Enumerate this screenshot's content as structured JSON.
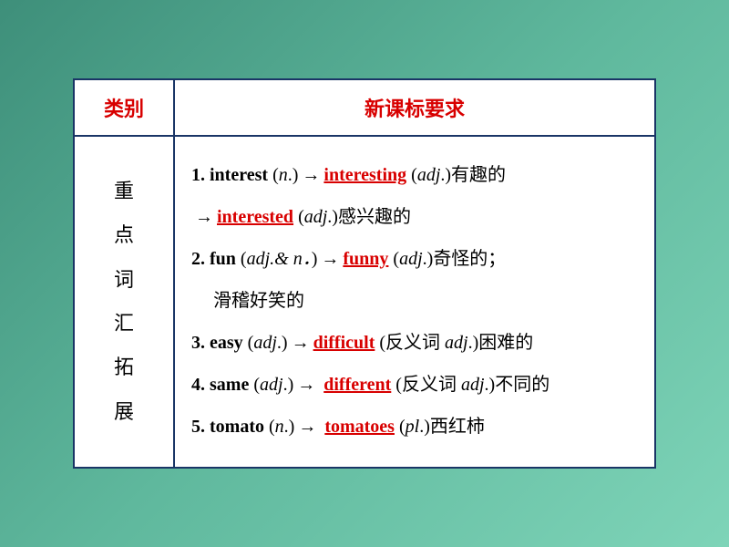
{
  "colors": {
    "border": "#1a3566",
    "heading_text": "#d80000",
    "derived_text": "#d80000",
    "body_text": "#000000",
    "background_gradient_start": "#3e8f7a",
    "background_gradient_end": "#7ed4b8",
    "table_bg": "#ffffff"
  },
  "typography": {
    "heading_fontsize": 22,
    "body_fontsize": 20,
    "line_height": 2.2
  },
  "header": {
    "category": "类别",
    "requirements": "新课标要求"
  },
  "category_label": {
    "c1": "重",
    "c2": "点",
    "c3": "词",
    "c4": "汇",
    "c5": "拓",
    "c6": "展"
  },
  "entries": [
    {
      "num": "1.",
      "base": "interest",
      "base_pos": "n",
      "arrow": "→",
      "derived": "interesting",
      "derived_pos": "adj",
      "meaning": "有趣的",
      "extra_arrow": "→",
      "extra_derived": "interested",
      "extra_pos": "adj",
      "extra_meaning": "感兴趣的"
    },
    {
      "num": "2.",
      "base": "fun",
      "base_pos": "adj.& n．",
      "arrow": "→",
      "derived": "funny",
      "derived_pos": "adj",
      "meaning": "奇怪的；",
      "meaning2": "滑稽好笑的"
    },
    {
      "num": "3.",
      "base": "easy",
      "base_pos": "adj",
      "arrow": "→",
      "derived": "difficult",
      "derived_note": "反义词 ",
      "derived_pos": "adj",
      "meaning": "困难的"
    },
    {
      "num": "4.",
      "base": "same",
      "base_pos": "adj",
      "arrow": "→",
      "derived": "different",
      "derived_note": "反义词 ",
      "derived_pos": "adj",
      "meaning": "不同的"
    },
    {
      "num": "5.",
      "base": "tomato",
      "base_pos": "n",
      "arrow": "→",
      "derived": "tomatoes",
      "derived_pos": "pl",
      "meaning": "西红柿"
    }
  ]
}
